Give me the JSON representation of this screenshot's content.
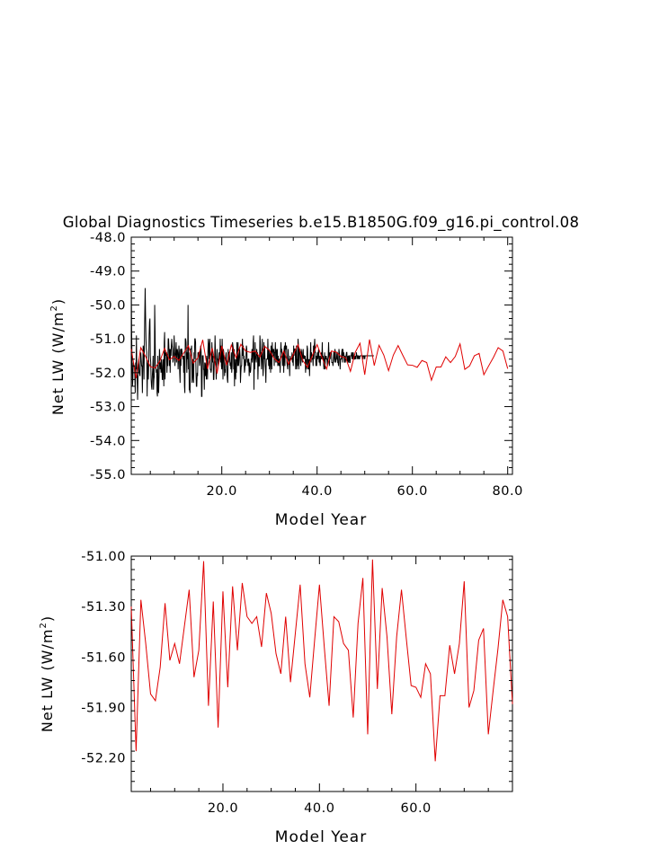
{
  "chart_data": [
    {
      "type": "line",
      "title": "Global Diagnostics Timeseries b.e15.B1850G.f09_g16.pi_control.08",
      "xlabel": "Model Year",
      "ylabel_main": "Net LW (W/m",
      "ylabel_sup": "2",
      "ylabel_end": ")",
      "xlim": [
        1,
        81
      ],
      "ylim": [
        -55.0,
        -48.0
      ],
      "x_ticks": [
        20,
        40,
        60,
        80
      ],
      "x_tick_labels": [
        "20.0",
        "40.0",
        "60.0",
        "80.0"
      ],
      "y_ticks": [
        -55,
        -54,
        -53,
        -52,
        -51,
        -50,
        -49,
        -48
      ],
      "y_tick_labels": [
        "-55.0",
        "-54.0",
        "-53.0",
        "-52.0",
        "-51.0",
        "-50.0",
        "-49.0",
        "-48.0"
      ],
      "grid": false,
      "series": [
        {
          "color": "#000000",
          "style": "monthly",
          "x_start": 1,
          "x_step": 0.0833333,
          "values": [
            -49.2,
            -50.8,
            -51.7,
            -52.4,
            -52.2,
            -51.7,
            -51.8,
            -51.8,
            -51.8,
            -52.1,
            -52.6,
            -51.7,
            -51.9,
            -50.9,
            -51.9,
            -52.3,
            -52.8,
            -52.1,
            -52.0,
            -51.6,
            -52.0,
            -52.0,
            -52.1,
            -51.7,
            -51.4,
            -51.6,
            -51.8,
            -51.8,
            -52.6,
            -51.8,
            -51.2,
            -51.3,
            -52.2,
            -51.2,
            -50.3,
            -49.5,
            -50.3,
            -51.0,
            -51.3,
            -51.4,
            -52.7,
            -51.7,
            -51.9,
            -52.2,
            -51.7,
            -50.9,
            -50.5,
            -50.4,
            -51.5,
            -51.7,
            -52.2,
            -52.4,
            -52.5,
            -52.1,
            -51.9,
            -51.5,
            -52.5,
            -52.2,
            -52.1,
            -50.0,
            -50.8,
            -51.8,
            -51.8,
            -52.0,
            -51.9,
            -52.6,
            -52.7,
            -51.5,
            -52.5,
            -52.6,
            -52.1,
            -51.3,
            -51.5,
            -51.9,
            -51.7,
            -52.0,
            -51.6,
            -51.8,
            -52.2,
            -52.2,
            -51.6,
            -51.7,
            -52.4,
            -51.1,
            -50.8,
            -52.2,
            -51.5,
            -51.4,
            -51.5,
            -51.4,
            -52.0,
            -51.5,
            -51.8,
            -51.0,
            -51.0,
            -51.3,
            -51.8,
            -51.3,
            -52.0,
            -51.3,
            -51.5,
            -51.2,
            -51.0,
            -51.2,
            -51.3,
            -51.7,
            -51.6,
            -51.4,
            -50.9,
            -51.3,
            -51.8,
            -51.5,
            -51.4,
            -51.1,
            -51.7,
            -51.4,
            -51.3,
            -51.4,
            -51.9,
            -51.6,
            -51.2,
            -51.4,
            -52.0,
            -52.3,
            -51.3,
            -51.8,
            -51.3,
            -51.3,
            -51.4,
            -51.5,
            -51.6,
            -51.5,
            -52.0,
            -51.5,
            -52.4,
            -52.6,
            -51.0,
            -51.0,
            -51.1,
            -51.5,
            -52.0,
            -51.4,
            -51.6,
            -50.0,
            -51.9,
            -51.4,
            -52.5,
            -52.5,
            -52.6,
            -51.3,
            -51.3,
            -51.3,
            -51.2,
            -52.3,
            -51.9,
            -51.6,
            -52.2,
            -52.3,
            -51.4,
            -51.6,
            -51.0,
            -51.0,
            -51.1,
            -52.0,
            -52.4,
            -52.4,
            -52.0,
            -52.1,
            -51.4,
            -51.5,
            -51.4,
            -51.4,
            -51.8,
            -51.7,
            -51.3,
            -51.2,
            -51.4,
            -52.7,
            -52.7,
            -51.5,
            -51.5,
            -51.5,
            -51.9,
            -51.9,
            -52.5,
            -51.7,
            -51.8,
            -52.1,
            -51.7,
            -52.2,
            -51.5,
            -51.7,
            -52.2,
            -51.4,
            -51.0,
            -51.2,
            -51.6,
            -51.2,
            -51.0,
            -51.9,
            -51.9,
            -52.0,
            -51.9,
            -51.1,
            -51.4,
            -51.7,
            -51.5,
            -52.2,
            -52.2,
            -51.7,
            -51.6,
            -50.9,
            -51.4,
            -51.8,
            -52.2,
            -51.8,
            -51.3,
            -51.6,
            -51.6,
            -51.8,
            -51.7,
            -51.4,
            -51.5,
            -51.6,
            -51.0,
            -51.7,
            -51.2,
            -51.8,
            -51.9,
            -51.0,
            -51.6,
            -52.2,
            -51.3,
            -51.4,
            -51.7,
            -52.1,
            -51.9,
            -52.0,
            -51.5,
            -51.4,
            -51.7,
            -52.0,
            -52.2,
            -52.3,
            -51.3,
            -51.7,
            -51.4,
            -51.4,
            -51.6,
            -51.8,
            -51.7,
            -51.9,
            -51.4,
            -52.0,
            -51.8,
            -51.1,
            -51.2,
            -51.3,
            -51.9,
            -51.3,
            -52.4,
            -51.6,
            -51.9,
            -52.2,
            -51.6,
            -52.0,
            -51.1,
            -51.3,
            -51.8,
            -51.1,
            -51.8,
            -51.7,
            -51.5,
            -51.3,
            -51.5,
            -52.3,
            -52.0,
            -51.8,
            -51.8,
            -51.4,
            -51.0,
            -51.5,
            -51.2,
            -51.6,
            -51.5,
            -52.0,
            -51.9,
            -51.6,
            -51.8,
            -51.5,
            -51.2,
            -51.3,
            -51.7,
            -51.6,
            -51.8,
            -51.6,
            -51.6,
            -52.1,
            -51.7,
            -51.9,
            -52.0,
            -51.9,
            -51.6,
            -51.6,
            -51.3,
            -51.7,
            -51.5,
            -51.1,
            -50.9,
            -52.5,
            -51.4,
            -51.9,
            -51.1,
            -51.5,
            -51.6,
            -51.7,
            -51.3,
            -51.5,
            -51.4,
            -52.2,
            -51.7,
            -51.5,
            -51.8,
            -51.8,
            -50.9,
            -51.1,
            -51.5,
            -51.4,
            -51.9,
            -51.4,
            -51.0,
            -51.7,
            -52.1,
            -51.8,
            -51.1,
            -51.6,
            -51.2,
            -51.7,
            -51.9,
            -52.3,
            -51.6,
            -51.6,
            -51.6,
            -51.6,
            -51.0,
            -51.5,
            -51.8,
            -51.3,
            -51.9,
            -51.6,
            -51.4,
            -52.0,
            -51.2,
            -51.4,
            -51.9,
            -51.1,
            -51.4,
            -51.3,
            -51.5,
            -51.3,
            -51.8,
            -51.4,
            -51.4,
            -51.1,
            -51.7,
            -51.3,
            -51.4,
            -51.7,
            -51.3,
            -51.8,
            -51.5,
            -51.7,
            -51.8,
            -51.6,
            -51.6,
            -52.0,
            -51.4,
            -51.1,
            -51.4,
            -51.3,
            -51.5,
            -51.8,
            -51.6,
            -51.4,
            -52.0,
            -51.3,
            -51.2,
            -51.8,
            -51.1,
            -51.3,
            -51.3,
            -51.2,
            -51.7,
            -51.8,
            -51.9,
            -51.3,
            -51.6,
            -51.6,
            -51.7,
            -52.1,
            -51.5,
            -51.6,
            -51.6,
            -51.6,
            -51.6,
            -51.4,
            -51.7,
            -51.5,
            -51.8,
            -51.2,
            -51.5,
            -51.3,
            -51.3,
            -51.3,
            -51.9,
            -51.5,
            -51.2,
            -51.9,
            -51.6,
            -51.8,
            -51.0,
            -51.2,
            -51.9,
            -51.3,
            -51.3,
            -51.4,
            -51.7,
            -51.8,
            -51.3,
            -51.4,
            -51.6,
            -51.7,
            -51.4,
            -51.3,
            -51.6,
            -51.5,
            -51.5,
            -51.6,
            -51.5,
            -52.0,
            -51.6,
            -51.9,
            -51.7,
            -51.2,
            -51.3,
            -51.9,
            -51.6,
            -51.9,
            -51.6,
            -52.1,
            -51.7,
            -51.4,
            -51.1,
            -51.7,
            -51.4,
            -51.5,
            -51.6,
            -51.6,
            -51.8,
            -51.2,
            -51.6,
            -51.2,
            -51.0,
            -51.4,
            -51.4,
            -51.8,
            -51.5,
            -51.8,
            -51.6,
            -51.4,
            -51.6,
            -51.4,
            -51.3,
            -51.7,
            -51.5,
            -51.7,
            -51.8,
            -51.5,
            -51.6,
            -51.4,
            -51.6,
            -51.1,
            -51.6,
            -51.5,
            -51.6,
            -51.9,
            -51.7,
            -51.4,
            -51.9,
            -51.5,
            -51.6,
            -51.5,
            -51.6,
            -51.6,
            -51.8,
            -51.6,
            -51.5,
            -51.1,
            -51.5,
            -51.8,
            -51.4,
            -51.6,
            -51.4,
            -51.4,
            -51.4,
            -51.7,
            -51.7,
            -51.7,
            -51.8,
            -51.6,
            -51.4,
            -51.4,
            -51.7,
            -51.3,
            -51.4,
            -51.7,
            -51.6,
            -51.6,
            -51.4,
            -51.4,
            -51.7,
            -51.7,
            -51.8,
            -51.3,
            -51.4,
            -51.6,
            -51.9,
            -51.6,
            -51.6,
            -51.6,
            -51.4,
            -51.3,
            -51.7,
            -51.3,
            -51.5,
            -51.4,
            -51.5,
            -51.7,
            -51.5,
            -51.7,
            -51.6,
            -51.5,
            -51.4,
            -51.4,
            -51.7,
            -51.6,
            -51.5,
            -51.7,
            -51.5,
            -51.5,
            -51.7,
            -51.7,
            -51.5,
            -51.5,
            -51.5,
            -51.4,
            -51.6,
            -51.4,
            -51.6,
            -51.4,
            -51.5,
            -51.6,
            -51.6,
            -51.5,
            -51.6,
            -51.5,
            -51.6,
            -51.4,
            -51.5,
            -51.5,
            -51.6,
            -51.5,
            -51.5,
            -51.6,
            -51.5,
            -51.6,
            -51.5,
            -51.5,
            -51.5,
            -51.5,
            -51.5,
            -51.5,
            -51.5,
            -51.5,
            -51.6,
            -51.5,
            -51.5,
            -51.5,
            -51.6,
            -51.5,
            -51.5,
            -51.5,
            -51.5,
            -51.5,
            -51.5,
            -51.5,
            -51.5,
            -51.5,
            -51.5,
            -51.5,
            -51.5,
            -51.5,
            -51.5,
            -51.5,
            -51.5,
            -51.5,
            -51.5,
            -51.5,
            -51.5,
            -51.5,
            -51.5,
            -51.5
          ]
        },
        {
          "color": "#e00000",
          "style": "annual",
          "x_start": 1,
          "x_step": 1,
          "values": [
            -51.3,
            -52.16,
            -51.26,
            -51.52,
            -51.82,
            -51.86,
            -51.66,
            -51.28,
            -51.62,
            -51.52,
            -51.64,
            -51.42,
            -51.2,
            -51.72,
            -51.56,
            -51.03,
            -51.89,
            -51.27,
            -52.02,
            -51.21,
            -51.78,
            -51.18,
            -51.56,
            -51.16,
            -51.36,
            -51.4,
            -51.36,
            -51.54,
            -51.22,
            -51.34,
            -51.58,
            -51.7,
            -51.36,
            -51.75,
            -51.46,
            -51.17,
            -51.64,
            -51.84,
            -51.5,
            -51.17,
            -51.54,
            -51.89,
            -51.36,
            -51.39,
            -51.52,
            -51.56,
            -51.96,
            -51.4,
            -51.13,
            -52.06,
            -51.02,
            -51.79,
            -51.19,
            -51.48,
            -51.94,
            -51.48,
            -51.2,
            -51.49,
            -51.77,
            -51.78,
            -51.84,
            -51.64,
            -51.7,
            -52.22,
            -51.83,
            -51.83,
            -51.53,
            -51.7,
            -51.52,
            -51.15,
            -51.9,
            -51.8,
            -51.5,
            -51.43,
            -52.06,
            -51.8,
            -51.55,
            -51.26,
            -51.36,
            -51.88
          ]
        }
      ]
    },
    {
      "type": "line",
      "xlabel": "Model Year",
      "ylabel_main": "Net LW (W/m",
      "ylabel_sup": "2",
      "ylabel_end": ")",
      "xlim": [
        1,
        80
      ],
      "ylim": [
        -52.4,
        -51.0
      ],
      "x_ticks": [
        20,
        40,
        60
      ],
      "x_tick_labels": [
        "20.0",
        "40.0",
        "60.0"
      ],
      "y_ticks": [
        -52.2,
        -51.9,
        -51.6,
        -51.3,
        -51.0
      ],
      "y_tick_labels": [
        "-52.20",
        "-51.90",
        "-51.60",
        "-51.30",
        "-51.00"
      ],
      "grid": false,
      "series": [
        {
          "color": "#e00000",
          "x_start": 1,
          "x_step": 1,
          "values": [
            -51.3,
            -52.16,
            -51.26,
            -51.52,
            -51.82,
            -51.86,
            -51.66,
            -51.28,
            -51.62,
            -51.52,
            -51.64,
            -51.42,
            -51.2,
            -51.72,
            -51.56,
            -51.03,
            -51.89,
            -51.27,
            -52.02,
            -51.21,
            -51.78,
            -51.18,
            -51.56,
            -51.16,
            -51.36,
            -51.4,
            -51.36,
            -51.54,
            -51.22,
            -51.34,
            -51.58,
            -51.7,
            -51.36,
            -51.75,
            -51.46,
            -51.17,
            -51.64,
            -51.84,
            -51.5,
            -51.17,
            -51.54,
            -51.89,
            -51.36,
            -51.39,
            -51.52,
            -51.56,
            -51.96,
            -51.4,
            -51.13,
            -52.06,
            -51.02,
            -51.79,
            -51.19,
            -51.48,
            -51.94,
            -51.48,
            -51.2,
            -51.49,
            -51.77,
            -51.78,
            -51.84,
            -51.64,
            -51.7,
            -52.22,
            -51.83,
            -51.83,
            -51.53,
            -51.7,
            -51.52,
            -51.15,
            -51.9,
            -51.8,
            -51.5,
            -51.43,
            -52.06,
            -51.8,
            -51.55,
            -51.26,
            -51.36,
            -51.88
          ]
        }
      ]
    }
  ]
}
